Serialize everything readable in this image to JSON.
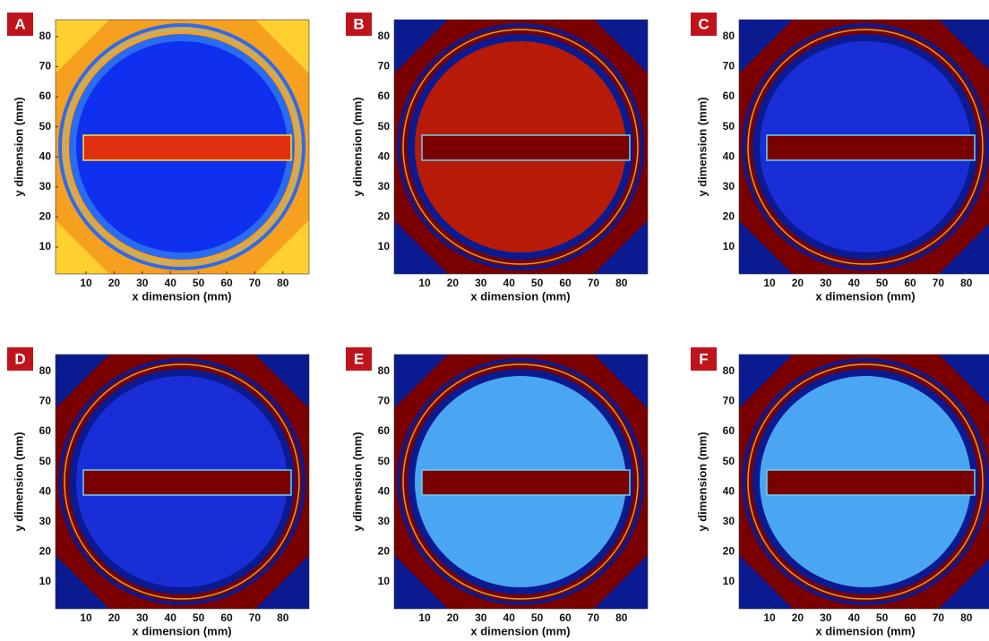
{
  "panels": [
    {
      "letter": "A",
      "xlabel": "x dimension (mm)",
      "ylabel": "y dimension (mm)",
      "xticks": [
        10,
        20,
        30,
        40,
        50,
        60,
        70,
        80
      ],
      "yticks": [
        10,
        20,
        30,
        40,
        50,
        60,
        70,
        80
      ]
    },
    {
      "letter": "B",
      "xlabel": "x dimension (mm)",
      "ylabel": "y dimension (mm)",
      "xticks": [
        10,
        20,
        30,
        40,
        50,
        60,
        70,
        80
      ],
      "yticks": [
        10,
        20,
        30,
        40,
        50,
        60,
        70,
        80
      ]
    },
    {
      "letter": "C",
      "xlabel": "x dimension (mm)",
      "ylabel": "y dimension (mm)",
      "xticks": [
        10,
        20,
        30,
        40,
        50,
        60,
        70,
        80
      ],
      "yticks": [
        10,
        20,
        30,
        40,
        50,
        60,
        70,
        80
      ]
    },
    {
      "letter": "D",
      "xlabel": "x dimension (mm)",
      "ylabel": "y dimension (mm)",
      "xticks": [
        10,
        20,
        30,
        40,
        50,
        60,
        70,
        80
      ],
      "yticks": [
        10,
        20,
        30,
        40,
        50,
        60,
        70,
        80
      ]
    },
    {
      "letter": "E",
      "xlabel": "x dimension (mm)",
      "ylabel": "y dimension (mm)",
      "xticks": [
        10,
        20,
        30,
        40,
        50,
        60,
        70,
        80
      ],
      "yticks": [
        10,
        20,
        30,
        40,
        50,
        60,
        70,
        80
      ]
    },
    {
      "letter": "F",
      "xlabel": "x dimension (mm)",
      "ylabel": "y dimension (mm)",
      "xticks": [
        10,
        20,
        30,
        40,
        50,
        60,
        70,
        80
      ],
      "yticks": [
        10,
        20,
        30,
        40,
        50,
        60,
        70,
        80
      ]
    }
  ]
}
